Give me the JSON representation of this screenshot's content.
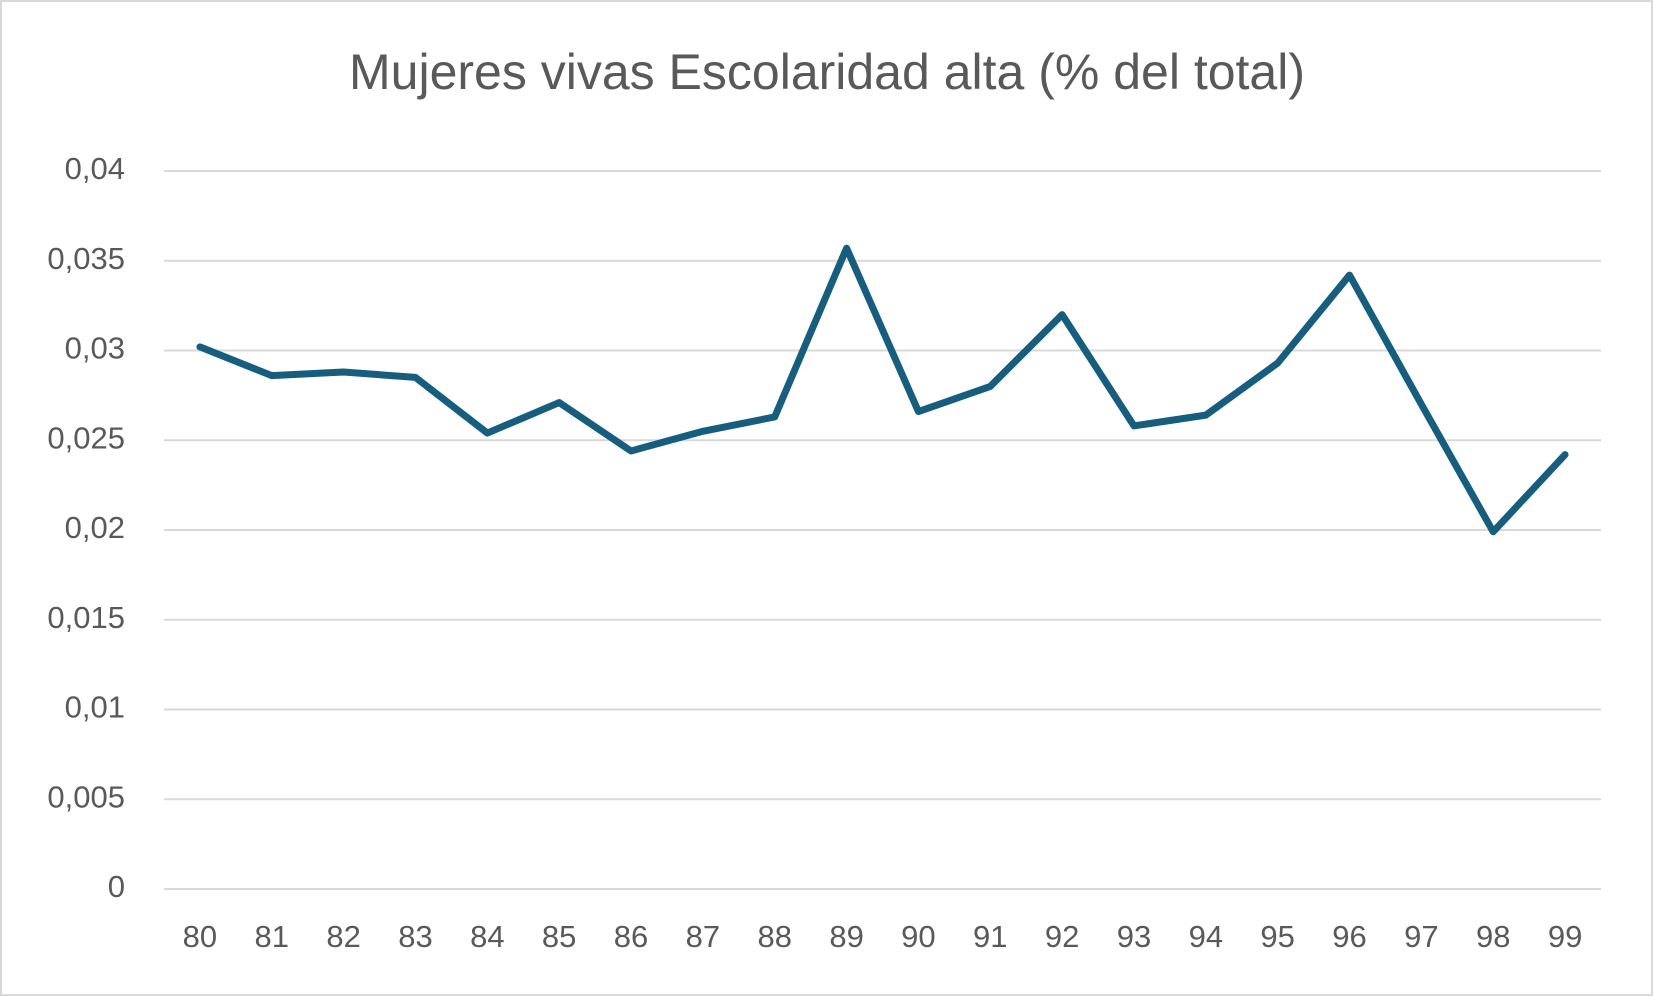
{
  "chart_data": {
    "type": "line",
    "title": "Mujeres vivas Escolaridad alta (% del total)",
    "categories": [
      "80",
      "81",
      "82",
      "83",
      "84",
      "85",
      "86",
      "87",
      "88",
      "89",
      "90",
      "91",
      "92",
      "93",
      "94",
      "95",
      "96",
      "97",
      "98",
      "99"
    ],
    "values": [
      0.0302,
      0.0286,
      0.0288,
      0.0285,
      0.0254,
      0.0271,
      0.0244,
      0.0255,
      0.0263,
      0.0357,
      0.0266,
      0.028,
      0.032,
      0.0258,
      0.0264,
      0.0293,
      0.0342,
      0.027,
      0.0199,
      0.0242
    ],
    "color": "#175e7e",
    "ylim": [
      0,
      0.04
    ],
    "yticks": [
      0,
      {
        "value": 0.005,
        "label": "0,005"
      },
      {
        "value": 0.01,
        "label": "0,01"
      },
      {
        "value": 0.015,
        "label": "0,015"
      },
      {
        "value": 0.02,
        "label": "0,02"
      },
      {
        "value": 0.025,
        "label": "0,025"
      },
      {
        "value": 0.03,
        "label": "0,03"
      },
      {
        "value": 0.035,
        "label": "0,035"
      },
      {
        "value": 0.04,
        "label": "0,04"
      }
    ],
    "grid": true
  }
}
